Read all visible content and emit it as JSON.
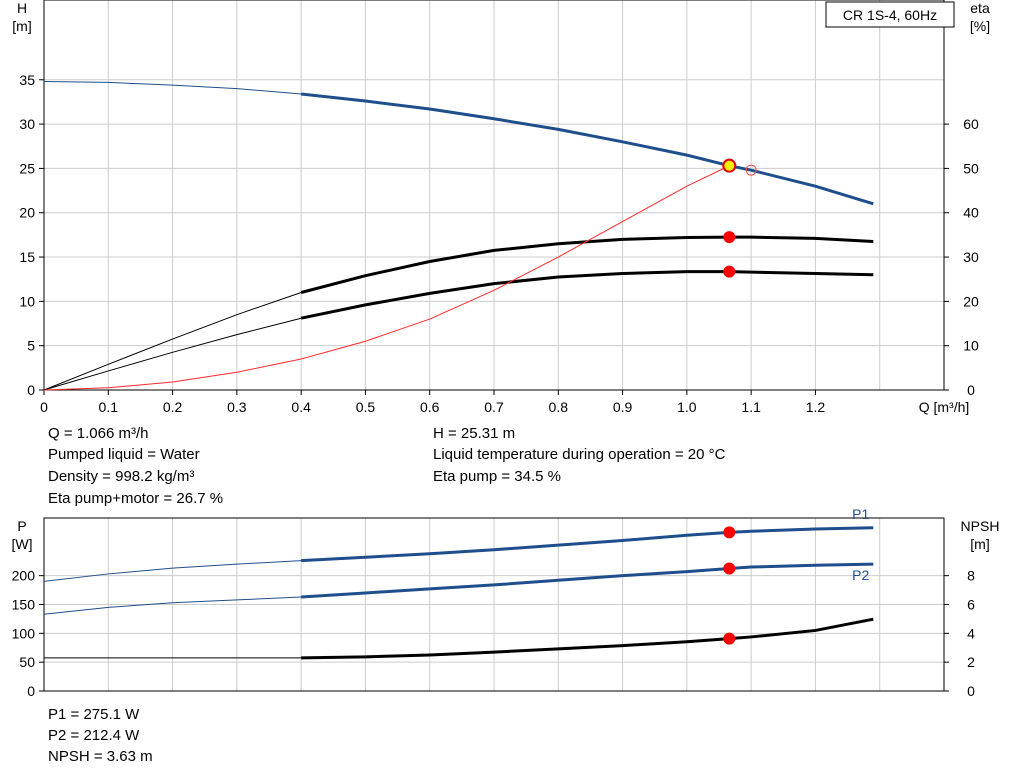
{
  "chart_data": [
    {
      "type": "line",
      "title": "CR 1S-4, 60Hz",
      "xlabel": "Q [m³/h]",
      "ylabel": "H\n[m]",
      "y2label": "eta\n[%]",
      "x_ticks": [
        "0",
        "0.1",
        "0.2",
        "0.3",
        "0.4",
        "0.5",
        "0.6",
        "0.7",
        "0.8",
        "0.9",
        "1.0",
        "1.1",
        "1.2"
      ],
      "y_ticks": [
        "0",
        "5",
        "10",
        "15",
        "20",
        "25",
        "30",
        "35"
      ],
      "y2_ticks": [
        "0",
        "10",
        "20",
        "30",
        "40",
        "50",
        "60"
      ],
      "xlim": [
        0,
        1.4
      ],
      "ylim": [
        0,
        44
      ],
      "y2lim": [
        0,
        88
      ],
      "grid": true,
      "series": [
        {
          "axis": "left",
          "color": "#1f4e8c",
          "x": [
            0,
            0.1,
            0.2,
            0.3,
            0.4,
            0.5,
            0.6,
            0.7,
            0.8,
            0.9,
            1.0,
            1.066,
            1.1,
            1.2,
            1.29
          ],
          "y": [
            34.8,
            34.7,
            34.4,
            34.0,
            33.4,
            32.6,
            31.7,
            30.6,
            29.4,
            28.0,
            26.5,
            25.31,
            24.8,
            23.0,
            21.0
          ]
        },
        {
          "axis": "right",
          "color": "#000000",
          "x": [
            0,
            0.1,
            0.2,
            0.3,
            0.4,
            0.5,
            0.6,
            0.7,
            0.8,
            0.9,
            1.0,
            1.066,
            1.1,
            1.2,
            1.29
          ],
          "y": [
            0,
            5.8,
            11.5,
            17.0,
            22.0,
            25.8,
            29.0,
            31.5,
            33.0,
            34.0,
            34.4,
            34.5,
            34.5,
            34.2,
            33.5
          ]
        },
        {
          "axis": "right",
          "color": "#000000",
          "x": [
            0,
            0.1,
            0.2,
            0.3,
            0.4,
            0.5,
            0.6,
            0.7,
            0.8,
            0.9,
            1.0,
            1.066,
            1.1,
            1.2,
            1.29
          ],
          "y": [
            0,
            4.3,
            8.5,
            12.5,
            16.2,
            19.2,
            21.8,
            24.0,
            25.5,
            26.3,
            26.7,
            26.7,
            26.6,
            26.3,
            26.0
          ]
        },
        {
          "axis": "right",
          "color": "#ff2a2a",
          "x": [
            0,
            0.1,
            0.2,
            0.3,
            0.4,
            0.5,
            0.6,
            0.7,
            0.8,
            0.9,
            1.0,
            1.066
          ],
          "y": [
            0,
            0.5,
            1.8,
            4.0,
            7.0,
            11.0,
            16.0,
            22.5,
            30.0,
            38.0,
            46.0,
            50.6
          ]
        }
      ],
      "operating_points": [
        {
          "axis": "left",
          "x": 1.066,
          "y": 25.31,
          "style": "yellow"
        },
        {
          "axis": "right",
          "x": 1.066,
          "y": 34.5,
          "style": "red"
        },
        {
          "axis": "right",
          "x": 1.066,
          "y": 26.7,
          "style": "red"
        },
        {
          "axis": "left",
          "x": 1.1,
          "y": 24.8,
          "style": "hollow"
        }
      ]
    },
    {
      "type": "line",
      "ylabel": "P\n[W]",
      "y2label": "NPSH\n[m]",
      "y_ticks": [
        "0",
        "50",
        "100",
        "150",
        "200"
      ],
      "y2_ticks": [
        "0",
        "2",
        "4",
        "6",
        "8"
      ],
      "xlim": [
        0,
        1.4
      ],
      "ylim": [
        0,
        300
      ],
      "y2lim": [
        0,
        12
      ],
      "grid": true,
      "series": [
        {
          "name": "P1",
          "axis": "left",
          "color": "#1f4e8c",
          "x": [
            0,
            0.1,
            0.2,
            0.3,
            0.4,
            0.5,
            0.6,
            0.7,
            0.8,
            0.9,
            1.0,
            1.066,
            1.1,
            1.2,
            1.29
          ],
          "y": [
            190,
            203,
            213,
            220,
            226,
            232,
            238,
            245,
            253,
            261,
            270,
            275.1,
            277,
            281,
            283
          ]
        },
        {
          "name": "P2",
          "axis": "left",
          "color": "#1f4e8c",
          "x": [
            0,
            0.1,
            0.2,
            0.3,
            0.4,
            0.5,
            0.6,
            0.7,
            0.8,
            0.9,
            1.0,
            1.066,
            1.1,
            1.2,
            1.29
          ],
          "y": [
            133,
            145,
            153,
            158,
            163,
            170,
            177,
            184,
            192,
            200,
            207,
            212.4,
            215,
            218,
            220
          ]
        },
        {
          "name": "",
          "axis": "right",
          "color": "#000000",
          "x": [
            0,
            0.1,
            0.2,
            0.3,
            0.4,
            0.5,
            0.6,
            0.7,
            0.8,
            0.9,
            1.0,
            1.066,
            1.1,
            1.2,
            1.29
          ],
          "y": [
            2.3,
            2.3,
            2.3,
            2.3,
            2.3,
            2.37,
            2.5,
            2.7,
            2.92,
            3.15,
            3.42,
            3.63,
            3.75,
            4.2,
            4.98
          ]
        }
      ],
      "operating_points": [
        {
          "axis": "left",
          "x": 1.066,
          "y": 275.1,
          "style": "red"
        },
        {
          "axis": "left",
          "x": 1.066,
          "y": 212.4,
          "style": "red"
        },
        {
          "axis": "right",
          "x": 1.066,
          "y": 3.63,
          "style": "red"
        }
      ]
    }
  ],
  "info": {
    "q": "Q = 1.066 m³/h",
    "pumped": "Pumped liquid = Water",
    "density": "Density = 998.2 kg/m³",
    "eta_motor": "Eta pump+motor = 26.7 %",
    "h": "H = 25.31 m",
    "temp": "Liquid temperature during operation = 20 °C",
    "eta_pump": "Eta pump = 34.5 %",
    "p1": "P1 = 275.1 W",
    "p2": "P2 = 212.4 W",
    "npsh": "NPSH = 3.63 m"
  }
}
